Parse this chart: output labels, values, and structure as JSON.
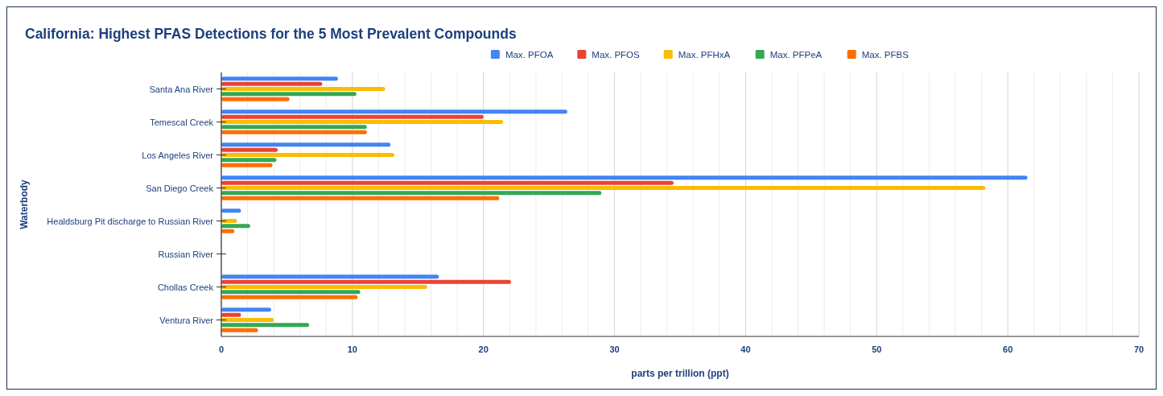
{
  "chart_data": {
    "type": "bar",
    "orientation": "horizontal",
    "title": "California: Highest PFAS Detections for the 5 Most Prevalent Compounds",
    "xlabel": "parts per trillion (ppt)",
    "ylabel": "Waterbody",
    "categories": [
      "Santa Ana River",
      "Temescal Creek",
      "Los Angeles River",
      "San Diego Creek",
      "Healdsburg Pit discharge to Russian River",
      "Russian River",
      "Chollas Creek",
      "Ventura River"
    ],
    "series": [
      {
        "name": "Max. PFOA",
        "color": "#4285f4",
        "values": [
          8.9,
          26.4,
          12.9,
          61.5,
          1.5,
          null,
          16.6,
          3.8
        ]
      },
      {
        "name": "Max. PFOS",
        "color": "#ea4335",
        "values": [
          7.7,
          20.0,
          4.3,
          34.5,
          null,
          null,
          22.1,
          1.5
        ]
      },
      {
        "name": "Max. PFHxA",
        "color": "#fbbc04",
        "values": [
          12.5,
          21.5,
          13.2,
          58.3,
          1.2,
          null,
          15.7,
          4.0
        ]
      },
      {
        "name": "Max. PFPeA",
        "color": "#34a853",
        "values": [
          10.3,
          11.1,
          4.2,
          29.0,
          2.2,
          null,
          10.6,
          6.7
        ]
      },
      {
        "name": "Max. PFBS",
        "color": "#ff6d01",
        "values": [
          5.2,
          11.1,
          3.9,
          21.2,
          1.0,
          null,
          10.4,
          2.8
        ]
      }
    ],
    "xlim": [
      0,
      70
    ],
    "xticks": [
      0,
      {
        "value": 2,
        "label": null
      },
      {
        "value": 4,
        "label": null
      },
      {
        "value": 6,
        "label": null
      },
      {
        "value": 8,
        "label": null
      },
      10,
      {
        "value": 12,
        "label": null
      },
      {
        "value": 14,
        "label": null
      },
      {
        "value": 16,
        "label": null
      },
      {
        "value": 18,
        "label": null
      },
      20,
      {
        "value": 22,
        "label": null
      },
      {
        "value": 24,
        "label": null
      },
      {
        "value": 26,
        "label": null
      },
      {
        "value": 28,
        "label": null
      },
      30,
      {
        "value": 32,
        "label": null
      },
      {
        "value": 34,
        "label": null
      },
      {
        "value": 36,
        "label": null
      },
      {
        "value": 38,
        "label": null
      },
      40,
      {
        "value": 42,
        "label": null
      },
      {
        "value": 44,
        "label": null
      },
      {
        "value": 46,
        "label": null
      },
      {
        "value": 48,
        "label": null
      },
      50,
      {
        "value": 52,
        "label": null
      },
      {
        "value": 54,
        "label": null
      },
      {
        "value": 56,
        "label": null
      },
      {
        "value": 58,
        "label": null
      },
      60,
      {
        "value": 62,
        "label": null
      },
      {
        "value": 64,
        "label": null
      },
      {
        "value": 66,
        "label": null
      },
      {
        "value": 68,
        "label": null
      },
      70
    ],
    "grid": "x",
    "legend": "top"
  }
}
